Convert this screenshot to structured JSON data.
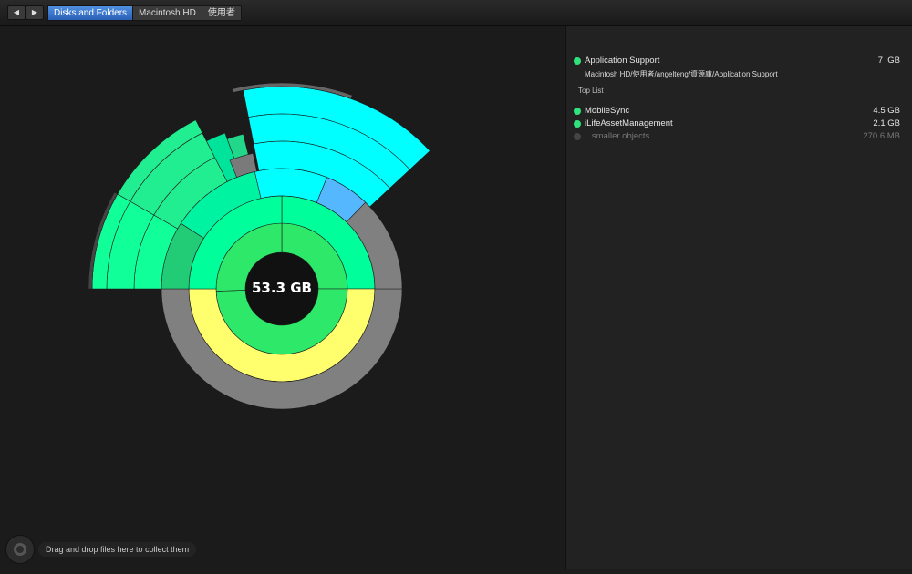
{
  "toolbar": {
    "back_icon": "◀",
    "forward_icon": "▶",
    "breadcrumbs": [
      "Disks and Folders",
      "Macintosh HD",
      "使用者"
    ]
  },
  "chart": {
    "center_label": "53.3 GB"
  },
  "sidebar": {
    "selected": {
      "name": "Application Support",
      "size": "7",
      "unit": "GB",
      "color": "#2fe27a",
      "path": "Macintosh HD/使用者/angelteng/資源庫/Application Support"
    },
    "section_label": "Top List",
    "items": [
      {
        "name": "MobileSync",
        "size": "4.5",
        "unit": "GB",
        "color": "#2fe27a"
      },
      {
        "name": "iLifeAssetManagement",
        "size": "2.1",
        "unit": "GB",
        "color": "#2fe27a"
      },
      {
        "name": "...smaller objects...",
        "size": "270.6",
        "unit": "MB",
        "color": "#444444"
      }
    ]
  },
  "dropzone": {
    "label": "Drag and drop files here to collect them"
  }
}
